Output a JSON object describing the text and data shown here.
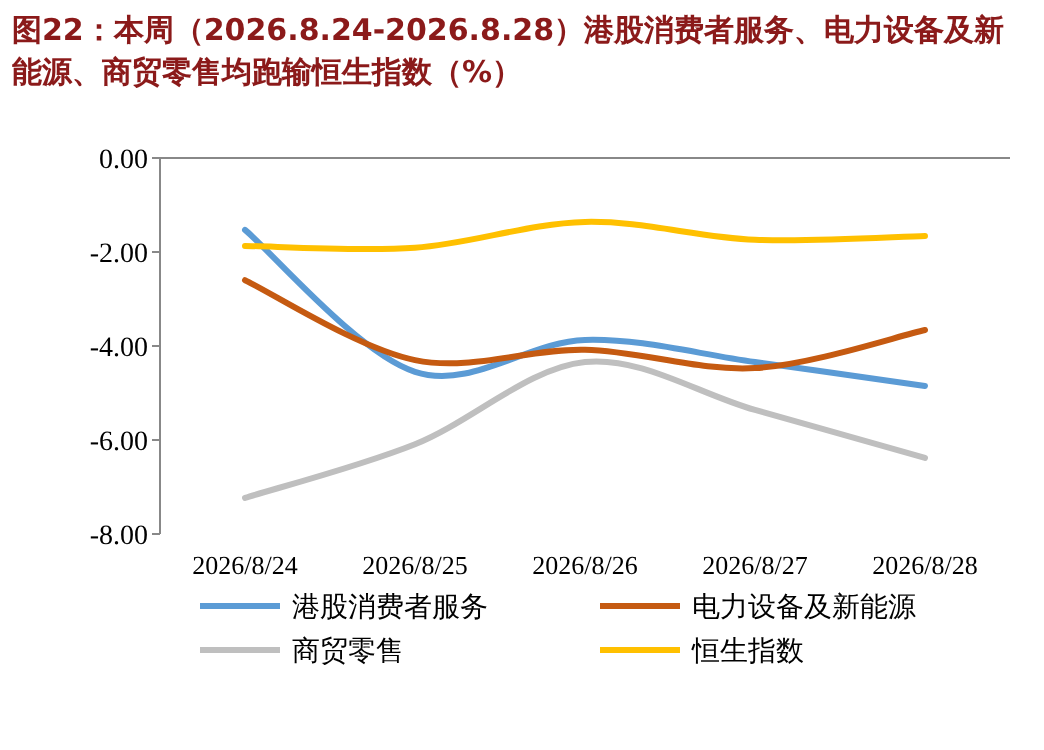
{
  "chart_data": {
    "type": "line",
    "title": "图22：本周（2026.8.24-2026.8.28）港股消费者服务、电力设备及新能源、商贸零售均跑输恒生指数（%）",
    "categories": [
      "2026/8/24",
      "2026/8/25",
      "2026/8/26",
      "2026/8/27",
      "2026/8/28"
    ],
    "series": [
      {
        "name": "港股消费者服务",
        "color": "#5b9bd5",
        "values": [
          -1.53,
          -4.55,
          -3.87,
          -4.34,
          -4.85
        ]
      },
      {
        "name": "电力设备及新能源",
        "color": "#c55a11",
        "values": [
          -2.6,
          -4.3,
          -4.08,
          -4.47,
          -3.66
        ]
      },
      {
        "name": "商贸零售",
        "color": "#bfbfbf",
        "values": [
          -7.23,
          -6.09,
          -4.34,
          -5.36,
          -6.38
        ]
      },
      {
        "name": "恒生指数",
        "color": "#ffc000",
        "values": [
          -1.87,
          -1.91,
          -1.36,
          -1.74,
          -1.66
        ]
      }
    ],
    "ylim": [
      -8,
      0
    ],
    "yticks": [
      {
        "value": 0,
        "label": "0.00"
      },
      {
        "value": -2,
        "label": "-2.00"
      },
      {
        "value": -4,
        "label": "-4.00"
      },
      {
        "value": -6,
        "label": "-6.00"
      },
      {
        "value": -8,
        "label": "-8.00"
      }
    ],
    "legend": "bottom",
    "marker": "none",
    "line_style": "solid"
  }
}
